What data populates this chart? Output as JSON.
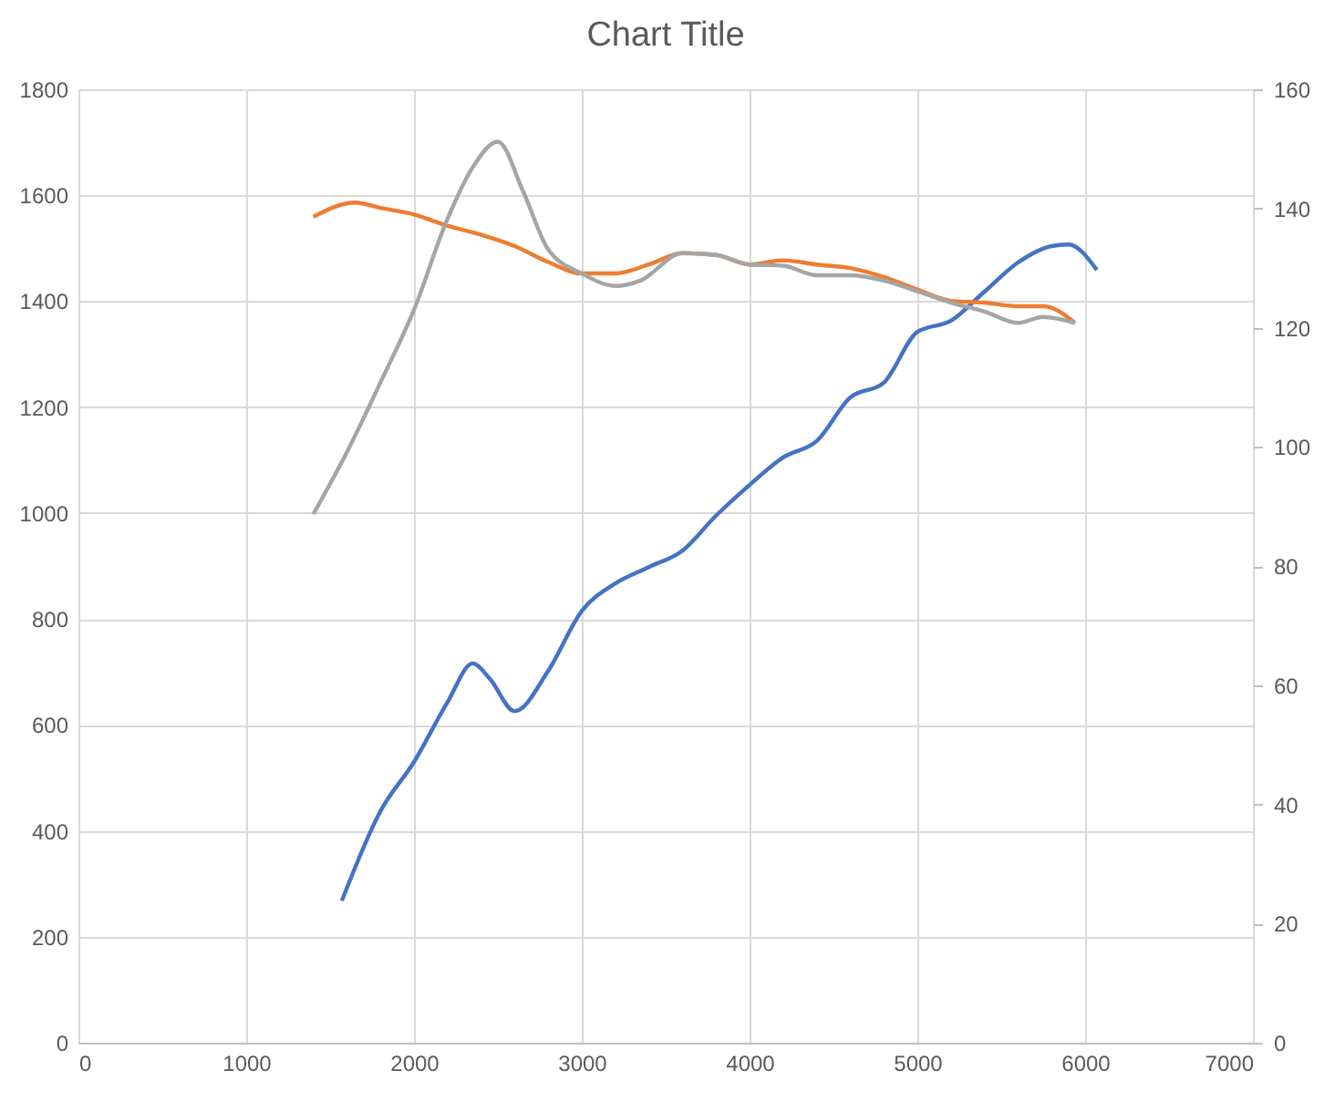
{
  "chart_data": {
    "type": "line",
    "title": "Chart Title",
    "xlim": [
      0,
      7000
    ],
    "xticks": [
      0,
      1000,
      2000,
      3000,
      4000,
      5000,
      6000,
      7000
    ],
    "ylim": [
      0,
      1800
    ],
    "yticks": [
      0,
      200,
      400,
      600,
      800,
      1000,
      1200,
      1400,
      1600,
      1800
    ],
    "y2lim": [
      0,
      160
    ],
    "y2ticks": [
      0,
      20,
      40,
      60,
      80,
      100,
      120,
      140,
      160
    ],
    "grid": true,
    "marker": "none",
    "line_style": "solid",
    "series": [
      {
        "color": "#4472c4",
        "x": [
          1570,
          1800,
          2000,
          2200,
          2350,
          2450,
          2600,
          2800,
          3000,
          3200,
          3400,
          3600,
          3800,
          4000,
          4200,
          4400,
          4600,
          4800,
          5000,
          5200,
          5400,
          5600,
          5800,
          5900,
          6070
        ],
        "values": [
          268,
          437,
          530,
          643,
          716,
          688,
          626,
          702,
          815,
          867,
          898,
          929,
          995,
          1053,
          1105,
          1136,
          1218,
          1246,
          1342,
          1363,
          1418,
          1473,
          1504,
          1507,
          1459
        ]
      },
      {
        "color": "#ed7d31",
        "axis": "y2",
        "x": [
          1400,
          1650,
          1800,
          2000,
          2200,
          2400,
          2600,
          2800,
          3000,
          3200,
          3400,
          3600,
          3800,
          4000,
          4200,
          4400,
          4600,
          4800,
          5000,
          5200,
          5400,
          5600,
          5750,
          5940
        ],
        "values": [
          138.6,
          141,
          140.1,
          139,
          137.1,
          135.6,
          133.7,
          131,
          129.1,
          129.1,
          130.6,
          132.5,
          132.2,
          130.6,
          131.3,
          130.6,
          130,
          128.5,
          126.4,
          124.5,
          124.2,
          123.6,
          123.6,
          120.8
        ]
      },
      {
        "color": "#a5a5a5",
        "axis": "y2",
        "x": [
          1400,
          1600,
          1800,
          2000,
          2200,
          2350,
          2500,
          2650,
          2800,
          3000,
          3200,
          3350,
          3600,
          3800,
          4000,
          4200,
          4400,
          4600,
          4800,
          5000,
          5200,
          5400,
          5600,
          5750,
          5940
        ],
        "values": [
          88.7,
          99.1,
          110.8,
          123,
          138.3,
          146.9,
          151.2,
          142.9,
          133.1,
          129.1,
          127,
          127.9,
          132.5,
          132.2,
          130.6,
          130.4,
          128.8,
          128.8,
          127.9,
          126.1,
          124.2,
          122.7,
          120.8,
          121.8,
          120.8
        ]
      }
    ]
  }
}
